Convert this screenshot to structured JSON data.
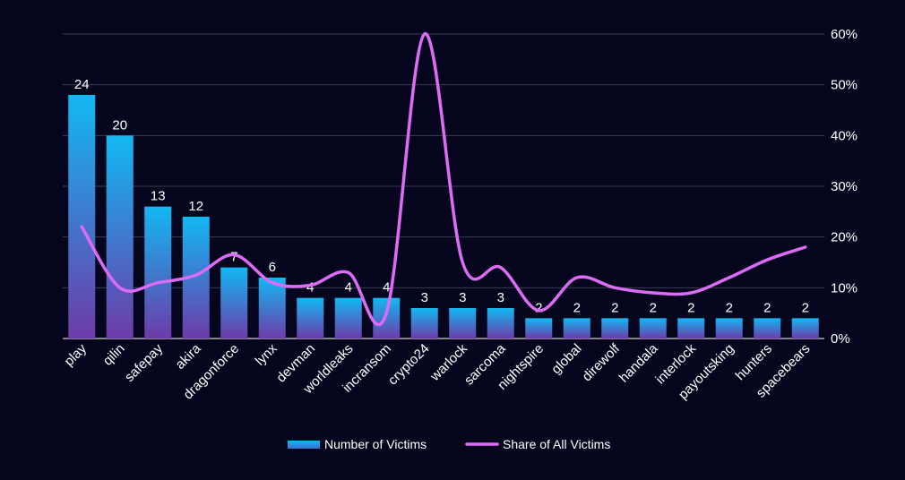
{
  "chart_data": {
    "type": "bar",
    "categories": [
      "play",
      "qilin",
      "safepay",
      "akira",
      "dragonforce",
      "lynx",
      "devman",
      "worldleaks",
      "incransom",
      "crypto24",
      "warlock",
      "sarcoma",
      "nightspire",
      "global",
      "direwolf",
      "handala",
      "interlock",
      "payoutsking",
      "hunters",
      "spacebears"
    ],
    "series": [
      {
        "name": "Number of Victims",
        "type": "bar",
        "axis": "left",
        "values": [
          24,
          20,
          13,
          12,
          7,
          6,
          4,
          4,
          4,
          3,
          3,
          3,
          2,
          2,
          2,
          2,
          2,
          2,
          2,
          2
        ]
      },
      {
        "name": "Share of All Victims",
        "type": "line",
        "axis": "right",
        "values": [
          22,
          10,
          11,
          12.5,
          16.5,
          11,
          10.5,
          13,
          5,
          60,
          15,
          14,
          5.5,
          12,
          10,
          9,
          9,
          12,
          15.5,
          18
        ]
      }
    ],
    "y_left_range": [
      0,
      30
    ],
    "y_right_range": [
      0,
      60
    ],
    "y_right_ticks": [
      "0%",
      "10%",
      "20%",
      "30%",
      "40%",
      "50%",
      "60%"
    ],
    "grid": true,
    "legend_position": "bottom",
    "colors": {
      "background": "#05061e",
      "bar_top": "#12b8f3",
      "bar_bottom": "#6d3ba8",
      "line": "#dc6cf5",
      "grid": "#3a3d52",
      "text": "#ffffff"
    }
  }
}
